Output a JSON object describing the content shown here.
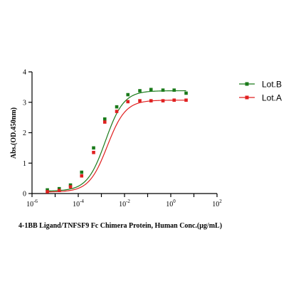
{
  "chart_data": {
    "type": "scatter",
    "xlabel": "4-1BB Ligand/TNFSF9 Fc Chimera Protein, Human  Conc.(μg/mL)",
    "ylabel": "Abs.(OD.450nm)",
    "xscale": "log",
    "xlim": [
      1e-06,
      100
    ],
    "ylim": [
      0,
      4
    ],
    "x_ticks": [
      {
        "value": 1e-06,
        "base": "10",
        "exp": "-6"
      },
      {
        "value": 0.0001,
        "base": "10",
        "exp": "-4"
      },
      {
        "value": 0.01,
        "base": "10",
        "exp": "-2"
      },
      {
        "value": 1,
        "base": "10",
        "exp": "0"
      },
      {
        "value": 100,
        "base": "10",
        "exp": "2"
      }
    ],
    "y_ticks": [
      {
        "value": 0,
        "label": "0"
      },
      {
        "value": 1,
        "label": "1"
      },
      {
        "value": 2,
        "label": "2"
      },
      {
        "value": 3,
        "label": "3"
      },
      {
        "value": 4,
        "label": "4"
      }
    ],
    "grid": false,
    "legend_position": "top-right",
    "series": [
      {
        "name": "Lot.B",
        "color": "#1a7a1a",
        "marker": "square",
        "fit": {
          "bottom": 0.08,
          "top": 3.38,
          "ec50": 0.0015,
          "hill": 1.1
        },
        "x": [
          4.6e-06,
          1.5e-05,
          4.6e-05,
          0.00014,
          0.00046,
          0.0014,
          0.0046,
          0.014,
          0.046,
          0.14,
          0.46,
          1.4,
          4.6
        ],
        "y": [
          0.12,
          0.16,
          0.28,
          0.7,
          1.5,
          2.45,
          2.85,
          3.25,
          3.38,
          3.42,
          3.4,
          3.4,
          3.3
        ]
      },
      {
        "name": "Lot.A",
        "color": "#e02020",
        "marker": "square",
        "fit": {
          "bottom": 0.05,
          "top": 3.07,
          "ec50": 0.0018,
          "hill": 1.1
        },
        "x": [
          4.6e-06,
          1.5e-05,
          4.6e-05,
          0.00014,
          0.00046,
          0.0014,
          0.0046,
          0.014,
          0.046,
          0.14,
          0.46,
          1.4,
          4.6
        ],
        "y": [
          0.06,
          0.1,
          0.22,
          0.58,
          1.35,
          2.35,
          2.7,
          3.02,
          3.05,
          3.05,
          3.05,
          3.07,
          3.07
        ]
      }
    ]
  }
}
